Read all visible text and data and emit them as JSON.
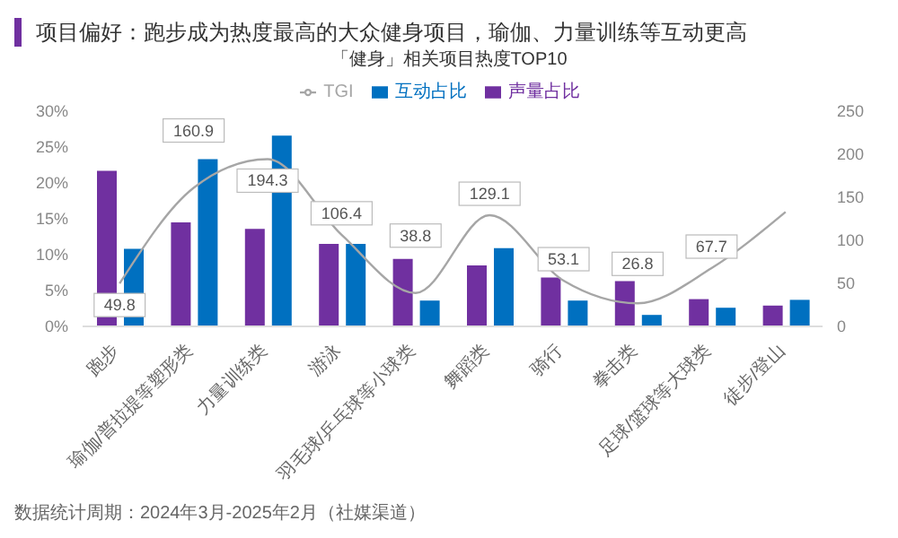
{
  "chart_data": {
    "type": "bar",
    "title": "项目偏好：跑步成为热度最高的大众健身项目，瑜伽、力量训练等互动更高",
    "subtitle": "「健身」相关项目热度TOP10",
    "categories": [
      "跑步",
      "瑜伽/普拉提等塑形类",
      "力量训练类",
      "游泳",
      "羽毛球/乒乓球等小球类",
      "舞蹈类",
      "骑行",
      "拳击类",
      "足球/篮球等大球类",
      "徒步/登山"
    ],
    "series": [
      {
        "name": "声量占比",
        "color": "#7030a0",
        "values": [
          21.7,
          14.5,
          13.6,
          11.5,
          9.4,
          8.5,
          6.8,
          6.3,
          3.8,
          2.9
        ]
      },
      {
        "name": "互动占比",
        "color": "#0070c0",
        "values": [
          10.8,
          23.3,
          26.6,
          11.5,
          3.6,
          10.9,
          3.6,
          1.6,
          2.6,
          3.7
        ]
      },
      {
        "name": "TGI",
        "type": "line",
        "axis": "y2",
        "color": "#a6a6a6",
        "values": [
          49.8,
          160.9,
          194.3,
          106.4,
          38.8,
          129.1,
          53.1,
          26.8,
          67.7,
          133
        ],
        "value_labels": [
          "49.8",
          "160.9",
          "194.3",
          "106.4",
          "38.8",
          "129.1",
          "53.1",
          "26.8",
          "67.7",
          null
        ]
      }
    ],
    "ylim": [
      0,
      30
    ],
    "yticks": [
      {
        "value": 0,
        "label": "0%"
      },
      {
        "value": 5,
        "label": "5%"
      },
      {
        "value": 10,
        "label": "10%"
      },
      {
        "value": 15,
        "label": "15%"
      },
      {
        "value": 20,
        "label": "20%"
      },
      {
        "value": 25,
        "label": "25%"
      },
      {
        "value": 30,
        "label": "30%"
      }
    ],
    "y2lim": [
      0,
      250
    ],
    "y2ticks": [
      0,
      50,
      100,
      150,
      200,
      250
    ],
    "legend": "top",
    "line_style": "solid",
    "annotations": [
      "数据统计周期：2024年3月-2025年2月（社媒渠道）"
    ]
  }
}
